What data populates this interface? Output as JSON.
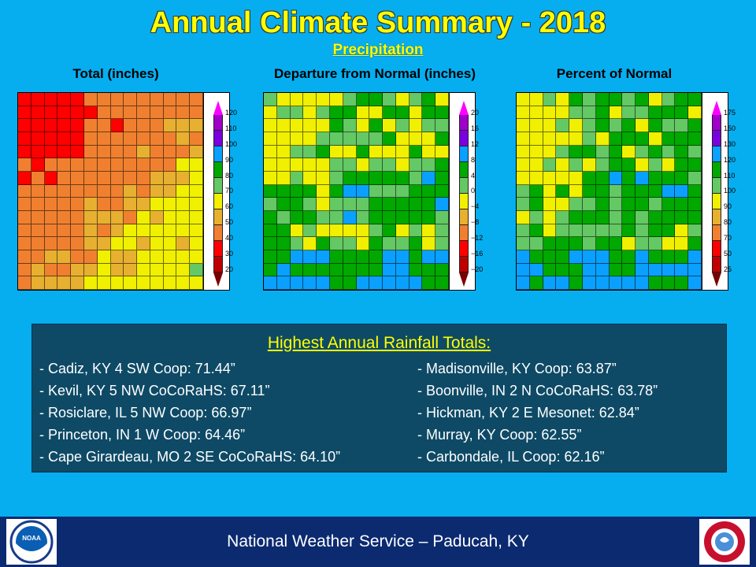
{
  "title": "Annual Climate Summary - 2018",
  "subtitle": "Precipitation",
  "panels": [
    {
      "title": "Total  (inches)",
      "legend": [
        "120",
        "110",
        "100",
        "90",
        "80",
        "70",
        "60",
        "50",
        "40",
        "30",
        "20"
      ]
    },
    {
      "title": "Departure  from Normal (inches)",
      "legend": [
        "20",
        "16",
        "12",
        "8",
        "4",
        "0",
        "−4",
        "−8",
        "−12",
        "−16",
        "−20"
      ]
    },
    {
      "title": "Percent of Normal",
      "legend": [
        "175",
        "150",
        "130",
        "120",
        "110",
        "100",
        "90",
        "80",
        "70",
        "50",
        "25"
      ]
    }
  ],
  "legend_colors": [
    "#a000c8",
    "#7a00e0",
    "#0aa0ff",
    "#00a800",
    "#64c864",
    "#f0f000",
    "#e8b030",
    "#f08030",
    "#ff0000",
    "#c00000"
  ],
  "rainfall": {
    "title": "Highest Annual Rainfall Totals:",
    "left": [
      "- Cadiz, KY 4 SW Coop: 71.44”",
      "- Kevil, KY 5 NW CoCoRaHS: 67.11”",
      "- Rosiclare, IL 5 NW Coop: 66.97”",
      "- Princeton, IN 1 W Coop: 64.46”",
      "- Cape Girardeau, MO 2 SE CoCoRaHS: 64.10”"
    ],
    "right": [
      "- Madisonville, KY Coop: 63.87”",
      "- Boonville, IN 2 N CoCoRaHS: 63.78”",
      "- Hickman, KY 2 E Mesonet: 62.84”",
      "- Murray, KY Coop: 62.55”",
      "- Carbondale, IL Coop: 62.16”"
    ]
  },
  "footer": "National Weather Service – Paducah, KY",
  "logos": {
    "left": "NOAA",
    "right": "NATIONAL WEATHER SERVICE"
  }
}
